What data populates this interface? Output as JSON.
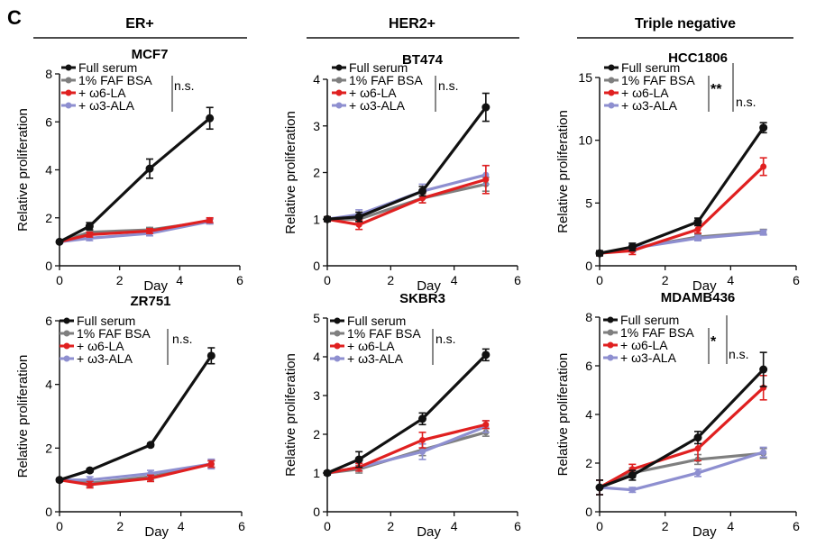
{
  "figure": {
    "panel_label": "C",
    "groups": [
      {
        "title": "ER+"
      },
      {
        "title": "HER2+"
      },
      {
        "title": "Triple negative"
      }
    ],
    "series_colors": {
      "Full serum": "#111111",
      "1% FAF BSA": "#7f7f7f",
      "+ ω6-LA": "#e02020",
      "+ ω3-ALA": "#8e8fd0"
    }
  },
  "chart_data": [
    {
      "type": "line",
      "title": "MCF7",
      "xlabel": "Day",
      "ylabel": "Relative proliferation",
      "xlim": [
        0,
        6
      ],
      "ylim": [
        0,
        8
      ],
      "xticks": [
        0,
        2,
        4,
        6
      ],
      "yticks": [
        0,
        2,
        4,
        6,
        8
      ],
      "x": [
        0,
        1,
        3,
        5
      ],
      "series": [
        {
          "name": "Full serum",
          "values": [
            1,
            1.65,
            4.05,
            6.15
          ],
          "errors": [
            0.05,
            0.15,
            0.4,
            0.45
          ]
        },
        {
          "name": "1% FAF BSA",
          "values": [
            1,
            1.4,
            1.5,
            1.85
          ],
          "errors": [
            0.05,
            0.1,
            0.1,
            0.1
          ]
        },
        {
          "name": "+ ω6-LA",
          "values": [
            1,
            1.3,
            1.45,
            1.9
          ],
          "errors": [
            0.05,
            0.1,
            0.1,
            0.1
          ]
        },
        {
          "name": "+ ω3-ALA",
          "values": [
            1,
            1.15,
            1.35,
            1.85
          ],
          "errors": [
            0.05,
            0.1,
            0.1,
            0.1
          ]
        }
      ],
      "annotations": [
        "n.s."
      ]
    },
    {
      "type": "line",
      "title": "BT474",
      "xlabel": "Day",
      "ylabel": "Relative proliferation",
      "xlim": [
        0,
        6
      ],
      "ylim": [
        0,
        4
      ],
      "xticks": [
        0,
        2,
        4,
        6
      ],
      "yticks": [
        0,
        1,
        2,
        3,
        4
      ],
      "x": [
        0,
        1,
        3,
        5
      ],
      "series": [
        {
          "name": "Full serum",
          "values": [
            1,
            1.05,
            1.6,
            3.4
          ],
          "errors": [
            0.05,
            0.1,
            0.1,
            0.3
          ]
        },
        {
          "name": "1% FAF BSA",
          "values": [
            1,
            1.0,
            1.45,
            1.75
          ],
          "errors": [
            0.05,
            0.05,
            0.1,
            0.15
          ]
        },
        {
          "name": "+ ω6-LA",
          "values": [
            1,
            0.88,
            1.45,
            1.85
          ],
          "errors": [
            0.05,
            0.1,
            0.1,
            0.3
          ]
        },
        {
          "name": "+ ω3-ALA",
          "values": [
            1,
            1.1,
            1.6,
            1.95
          ],
          "errors": [
            0.05,
            0.1,
            0.15,
            0.2
          ]
        }
      ],
      "annotations": [
        "n.s."
      ]
    },
    {
      "type": "line",
      "title": "HCC1806",
      "xlabel": "Day",
      "ylabel": "Relative proliferation",
      "xlim": [
        0,
        6
      ],
      "ylim": [
        0,
        15
      ],
      "xticks": [
        0,
        2,
        4,
        6
      ],
      "yticks": [
        0,
        5,
        10,
        15
      ],
      "x": [
        0,
        1,
        3,
        5
      ],
      "series": [
        {
          "name": "Full serum",
          "values": [
            1,
            1.5,
            3.5,
            11
          ],
          "errors": [
            0.2,
            0.3,
            0.3,
            0.4
          ]
        },
        {
          "name": "1% FAF BSA",
          "values": [
            1,
            1.4,
            2.3,
            2.7
          ],
          "errors": [
            0.2,
            0.3,
            0.2,
            0.2
          ]
        },
        {
          "name": "+ ω6-LA",
          "values": [
            1,
            1.2,
            2.9,
            7.9
          ],
          "errors": [
            0.2,
            0.3,
            0.3,
            0.7
          ]
        },
        {
          "name": "+ ω3-ALA",
          "values": [
            1,
            1.4,
            2.2,
            2.65
          ],
          "errors": [
            0.2,
            0.3,
            0.2,
            0.2
          ]
        }
      ],
      "annotations": [
        "**",
        "n.s."
      ]
    },
    {
      "type": "line",
      "title": "ZR751",
      "xlabel": "Day",
      "ylabel": "Relative proliferation",
      "xlim": [
        0,
        6
      ],
      "ylim": [
        0,
        6
      ],
      "xticks": [
        0,
        2,
        4,
        6
      ],
      "yticks": [
        0,
        2,
        4,
        6
      ],
      "x": [
        0,
        1,
        3,
        5
      ],
      "series": [
        {
          "name": "Full serum",
          "values": [
            1,
            1.3,
            2.1,
            4.9
          ],
          "errors": [
            0.05,
            0.05,
            0.05,
            0.25
          ]
        },
        {
          "name": "1% FAF BSA",
          "values": [
            1,
            0.9,
            1.1,
            1.5
          ],
          "errors": [
            0.05,
            0.1,
            0.1,
            0.1
          ]
        },
        {
          "name": "+ ω6-LA",
          "values": [
            1,
            0.85,
            1.05,
            1.5
          ],
          "errors": [
            0.05,
            0.1,
            0.1,
            0.1
          ]
        },
        {
          "name": "+ ω3-ALA",
          "values": [
            1,
            1.0,
            1.2,
            1.5
          ],
          "errors": [
            0.05,
            0.1,
            0.1,
            0.15
          ]
        }
      ],
      "annotations": [
        "n.s."
      ]
    },
    {
      "type": "line",
      "title": "SKBR3",
      "xlabel": "Day",
      "ylabel": "Relative proliferation",
      "xlim": [
        0,
        6
      ],
      "ylim": [
        0,
        5
      ],
      "xticks": [
        0,
        2,
        4,
        6
      ],
      "yticks": [
        0,
        1,
        2,
        3,
        4,
        5
      ],
      "x": [
        0,
        1,
        3,
        5
      ],
      "series": [
        {
          "name": "Full serum",
          "values": [
            1,
            1.35,
            2.4,
            4.05
          ],
          "errors": [
            0.05,
            0.2,
            0.15,
            0.15
          ]
        },
        {
          "name": "1% FAF BSA",
          "values": [
            1,
            1.1,
            1.6,
            2.05
          ],
          "errors": [
            0.05,
            0.1,
            0.15,
            0.1
          ]
        },
        {
          "name": "+ ω6-LA",
          "values": [
            1,
            1.15,
            1.85,
            2.25
          ],
          "errors": [
            0.05,
            0.1,
            0.2,
            0.1
          ]
        },
        {
          "name": "+ ω3-ALA",
          "values": [
            1,
            1.15,
            1.55,
            2.2
          ],
          "errors": [
            0.05,
            0.1,
            0.2,
            0.15
          ]
        }
      ],
      "annotations": [
        "n.s."
      ]
    },
    {
      "type": "line",
      "title": "MDAMB436",
      "xlabel": "Day",
      "ylabel": "Relative proliferation",
      "xlim": [
        0,
        6
      ],
      "ylim": [
        0,
        8
      ],
      "xticks": [
        0,
        2,
        4,
        6
      ],
      "yticks": [
        0,
        2,
        4,
        6,
        8
      ],
      "x": [
        0,
        1,
        3,
        5
      ],
      "series": [
        {
          "name": "Full serum",
          "values": [
            1,
            1.5,
            3.05,
            5.85
          ],
          "errors": [
            0.3,
            0.2,
            0.25,
            0.7
          ]
        },
        {
          "name": "1% FAF BSA",
          "values": [
            1,
            1.6,
            2.15,
            2.4
          ],
          "errors": [
            0.3,
            0.2,
            0.2,
            0.2
          ]
        },
        {
          "name": "+ ω6-LA",
          "values": [
            1,
            1.75,
            2.6,
            5.1
          ],
          "errors": [
            0.3,
            0.2,
            0.5,
            0.5
          ]
        },
        {
          "name": "+ ω3-ALA",
          "values": [
            1,
            0.9,
            1.6,
            2.45
          ],
          "errors": [
            0.3,
            0.1,
            0.15,
            0.2
          ]
        }
      ],
      "annotations": [
        "*",
        "n.s."
      ]
    }
  ]
}
